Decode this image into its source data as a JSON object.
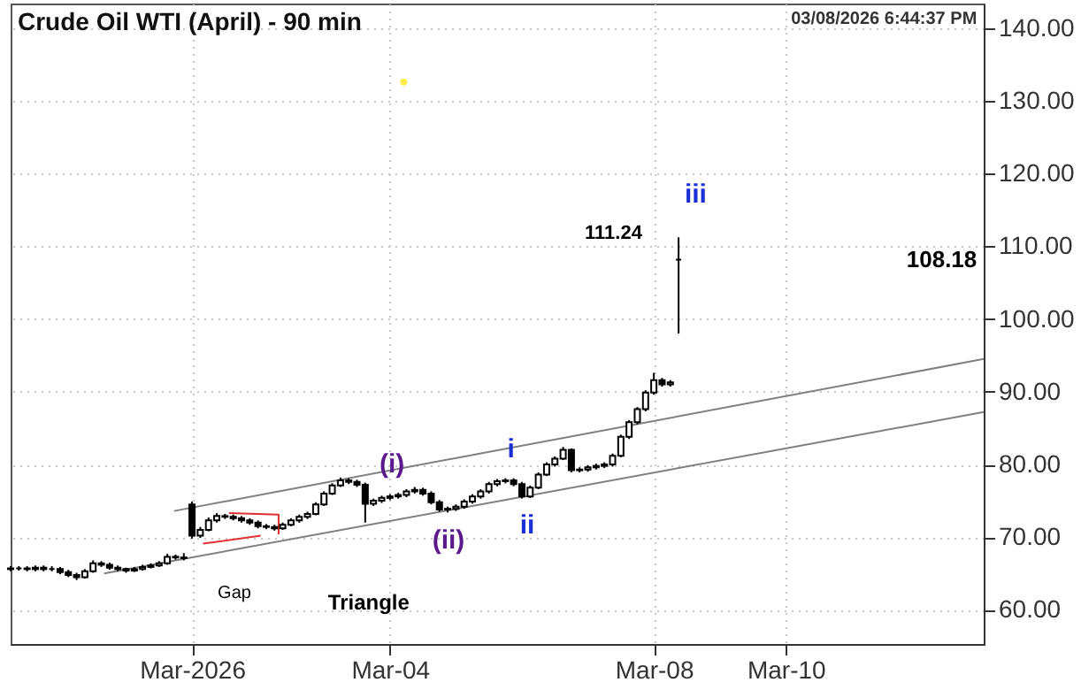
{
  "chart_data": {
    "type": "candlestick",
    "title": "Crude Oil WTI (April) - 90 min",
    "annotations": [
      "03/08/2026 6:44:37 PM",
      "(i)",
      "(ii)",
      {
        "text": "i",
        "x": "2026-03-05T20:00",
        "y": 82.2
      },
      "ii",
      "iii",
      "Gap",
      "Triangle",
      "111.24",
      "108.18"
    ],
    "x": [
      "2026-02-26T06:00",
      "2026-02-26T09:00",
      "2026-02-26T12:00",
      "2026-02-26T15:00",
      "2026-02-26T18:00",
      "2026-02-26T21:00",
      "2026-02-27T00:00",
      "2026-02-27T03:00",
      "2026-02-27T06:00",
      "2026-02-27T09:00",
      "2026-02-27T12:00",
      "2026-02-27T15:00",
      "2026-02-27T18:00",
      "2026-02-27T21:00",
      "2026-02-28T00:00",
      "2026-02-28T03:00",
      "2026-02-28T06:00",
      "2026-02-28T09:00",
      "2026-02-28T12:00",
      "2026-02-28T15:00",
      "2026-02-28T18:00",
      "2026-02-28T21:00",
      "2026-03-01T00:00",
      "2026-03-01T03:00",
      "2026-03-01T06:00",
      "2026-03-01T09:00",
      "2026-03-01T12:00",
      "2026-03-01T15:00",
      "2026-03-01T18:00",
      "2026-03-01T21:00",
      "2026-03-02T00:00",
      "2026-03-02T03:00",
      "2026-03-02T06:00",
      "2026-03-02T09:00",
      "2026-03-02T12:00",
      "2026-03-02T15:00",
      "2026-03-02T18:00",
      "2026-03-02T21:00",
      "2026-03-03T00:00",
      "2026-03-03T03:00",
      "2026-03-03T06:00",
      "2026-03-03T09:00",
      "2026-03-03T12:00",
      "2026-03-03T15:00",
      "2026-03-03T18:00",
      "2026-03-03T21:00",
      "2026-03-04T00:00",
      "2026-03-04T03:00",
      "2026-03-04T06:00",
      "2026-03-04T09:00",
      "2026-03-04T12:00",
      "2026-03-04T15:00",
      "2026-03-04T18:00",
      "2026-03-04T21:00",
      "2026-03-05T00:00",
      "2026-03-05T03:00",
      "2026-03-05T06:00",
      "2026-03-05T09:00",
      "2026-03-05T12:00",
      "2026-03-05T15:00",
      "2026-03-05T18:00",
      "2026-03-05T21:00",
      "2026-03-06T00:00",
      "2026-03-06T03:00",
      "2026-03-06T06:00",
      "2026-03-06T09:00",
      "2026-03-06T12:00",
      "2026-03-06T15:00",
      "2026-03-06T18:00",
      "2026-03-06T21:00",
      "2026-03-07T00:00",
      "2026-03-07T03:00",
      "2026-03-07T06:00",
      "2026-03-07T09:00",
      "2026-03-07T12:00",
      "2026-03-07T15:00",
      "2026-03-07T18:00",
      "2026-03-07T21:00",
      "2026-03-08T00:00",
      "2026-03-08T03:00",
      "2026-03-08T06:00",
      "2026-03-08T09:00"
    ],
    "ohlc": [
      [
        65.6,
        66.0,
        65.3,
        65.7
      ],
      [
        65.7,
        66.0,
        65.4,
        65.7
      ],
      [
        65.7,
        66.0,
        65.3,
        65.6
      ],
      [
        65.6,
        66.1,
        65.3,
        65.8
      ],
      [
        65.8,
        66.1,
        65.3,
        65.6
      ],
      [
        65.6,
        66.0,
        65.3,
        65.6
      ],
      [
        65.6,
        65.9,
        64.9,
        65.2
      ],
      [
        65.2,
        65.5,
        64.5,
        64.8
      ],
      [
        64.8,
        65.1,
        64.1,
        64.5
      ],
      [
        64.5,
        65.6,
        64.3,
        65.3
      ],
      [
        65.3,
        66.8,
        65.1,
        66.4
      ],
      [
        66.4,
        66.7,
        65.9,
        66.2
      ],
      [
        66.2,
        66.5,
        65.5,
        65.8
      ],
      [
        65.8,
        66.1,
        65.3,
        65.6
      ],
      [
        65.6,
        65.8,
        65.1,
        65.4
      ],
      [
        65.4,
        65.9,
        65.2,
        65.6
      ],
      [
        65.6,
        66.2,
        65.4,
        65.9
      ],
      [
        65.9,
        66.4,
        65.7,
        66.1
      ],
      [
        66.1,
        66.7,
        65.9,
        66.4
      ],
      [
        66.4,
        67.7,
        66.2,
        67.3
      ],
      [
        67.3,
        67.6,
        66.9,
        67.2
      ],
      [
        67.2,
        67.8,
        66.8,
        67.1
      ],
      [
        74.5,
        74.9,
        69.8,
        70.2
      ],
      [
        70.2,
        71.4,
        69.9,
        71.0
      ],
      [
        71.0,
        72.7,
        70.8,
        72.3
      ],
      [
        72.3,
        73.3,
        72.0,
        72.9
      ],
      [
        72.9,
        73.2,
        72.5,
        72.8
      ],
      [
        72.8,
        73.1,
        72.3,
        72.6
      ],
      [
        72.6,
        72.9,
        72.0,
        72.3
      ],
      [
        72.3,
        72.6,
        71.7,
        72.0
      ],
      [
        72.0,
        72.3,
        71.2,
        71.5
      ],
      [
        71.5,
        71.8,
        71.1,
        71.4
      ],
      [
        71.4,
        71.7,
        70.9,
        71.2
      ],
      [
        71.2,
        72.0,
        71.0,
        71.7
      ],
      [
        71.7,
        72.6,
        71.5,
        72.3
      ],
      [
        72.3,
        73.1,
        72.0,
        72.8
      ],
      [
        72.8,
        73.5,
        72.5,
        73.2
      ],
      [
        73.2,
        74.8,
        73.0,
        74.5
      ],
      [
        74.5,
        76.3,
        74.3,
        76.0
      ],
      [
        76.0,
        77.4,
        75.8,
        77.1
      ],
      [
        77.1,
        78.2,
        76.9,
        77.8
      ],
      [
        77.8,
        78.1,
        77.3,
        77.6
      ],
      [
        77.6,
        77.9,
        76.9,
        77.2
      ],
      [
        77.2,
        77.5,
        72.0,
        74.6
      ],
      [
        74.6,
        75.3,
        74.3,
        75.0
      ],
      [
        75.0,
        75.7,
        74.7,
        75.4
      ],
      [
        75.4,
        75.9,
        75.1,
        75.6
      ],
      [
        75.6,
        76.1,
        75.3,
        75.8
      ],
      [
        75.8,
        76.6,
        75.5,
        76.3
      ],
      [
        76.3,
        76.9,
        76.0,
        76.5
      ],
      [
        76.5,
        76.8,
        75.7,
        76.0
      ],
      [
        76.0,
        76.3,
        74.5,
        74.8
      ],
      [
        74.8,
        75.1,
        73.5,
        73.8
      ],
      [
        73.8,
        74.2,
        73.4,
        73.9
      ],
      [
        73.9,
        74.5,
        73.6,
        74.2
      ],
      [
        74.2,
        75.2,
        73.9,
        74.9
      ],
      [
        74.9,
        75.9,
        74.6,
        75.6
      ],
      [
        75.6,
        76.6,
        75.3,
        76.3
      ],
      [
        76.3,
        77.6,
        76.0,
        77.3
      ],
      [
        77.3,
        78.0,
        77.0,
        77.7
      ],
      [
        77.7,
        78.1,
        77.4,
        77.8
      ],
      [
        77.8,
        78.1,
        77.0,
        77.3
      ],
      [
        77.3,
        77.6,
        75.3,
        75.6
      ],
      [
        75.6,
        77.1,
        75.4,
        76.8
      ],
      [
        76.8,
        78.9,
        76.6,
        78.6
      ],
      [
        78.6,
        80.3,
        78.4,
        80.0
      ],
      [
        80.0,
        81.1,
        79.7,
        80.8
      ],
      [
        80.8,
        82.4,
        80.6,
        82.0
      ],
      [
        82.0,
        82.2,
        78.9,
        79.2
      ],
      [
        79.2,
        79.6,
        78.9,
        79.3
      ],
      [
        79.3,
        79.9,
        79.0,
        79.6
      ],
      [
        79.6,
        80.1,
        79.3,
        79.8
      ],
      [
        79.8,
        80.3,
        79.5,
        80.0
      ],
      [
        80.0,
        81.5,
        79.7,
        81.2
      ],
      [
        81.2,
        84.1,
        81.0,
        83.8
      ],
      [
        83.8,
        86.1,
        83.5,
        85.8
      ],
      [
        85.8,
        87.9,
        85.5,
        87.6
      ],
      [
        87.6,
        90.2,
        87.3,
        89.9
      ],
      [
        89.9,
        92.6,
        89.6,
        91.6
      ],
      [
        91.6,
        91.9,
        90.7,
        91.0
      ],
      [
        91.0,
        91.6,
        90.7,
        91.3
      ],
      [
        108.18,
        111.24,
        98.0,
        108.18
      ]
    ],
    "series": [
      {
        "type": "line",
        "color": "#808080",
        "x": [
          "2026-02-28T17:30",
          "2026-03-13T00:00"
        ],
        "values": [
          73.6,
          94.5
        ]
      },
      {
        "type": "line",
        "color": "#808080",
        "x": [
          "2026-02-27T16:00",
          "2026-03-13T00:00"
        ],
        "values": [
          65.0,
          87.2
        ]
      },
      {
        "type": "line",
        "color": "#e03030",
        "x": [
          "2026-03-01T13:30",
          "2026-03-02T07:30",
          "2026-03-02T07:30"
        ],
        "values": [
          73.3,
          73.1,
          70.4
        ]
      },
      {
        "type": "line",
        "color": "#e03030",
        "x": [
          "2026-03-01T04:00",
          "2026-03-02T01:00"
        ],
        "values": [
          69.1,
          70.2
        ]
      },
      {
        "type": "scatter",
        "color": "#ffe600",
        "x": [
          "2026-03-04T05:00"
        ],
        "values": [
          132.6
        ]
      }
    ],
    "xlim": [
      "2026-02-26T06:00",
      "2026-03-13T00:00"
    ],
    "xticks": [
      {
        "value": "2026-03-01",
        "label": "Mar-2026"
      },
      {
        "value": "2026-03-04",
        "label": "Mar-04"
      },
      {
        "value": "2026-03-08",
        "label": "Mar-08"
      },
      {
        "value": "2026-03-10",
        "label": "Mar-10"
      }
    ],
    "ylim": [
      55.3,
      143.4
    ],
    "yticks": [
      {
        "value": 60,
        "label": "60.00"
      },
      {
        "value": 70,
        "label": "70.00"
      },
      {
        "value": 80,
        "label": "80.00"
      },
      {
        "value": 90,
        "label": "90.00"
      },
      {
        "value": 100,
        "label": "100.00"
      },
      {
        "value": 110,
        "label": "110.00"
      },
      {
        "value": 120,
        "label": "120.00"
      },
      {
        "value": 130,
        "label": "130.00"
      },
      {
        "value": 140,
        "label": "140.00"
      }
    ],
    "grid": true
  }
}
